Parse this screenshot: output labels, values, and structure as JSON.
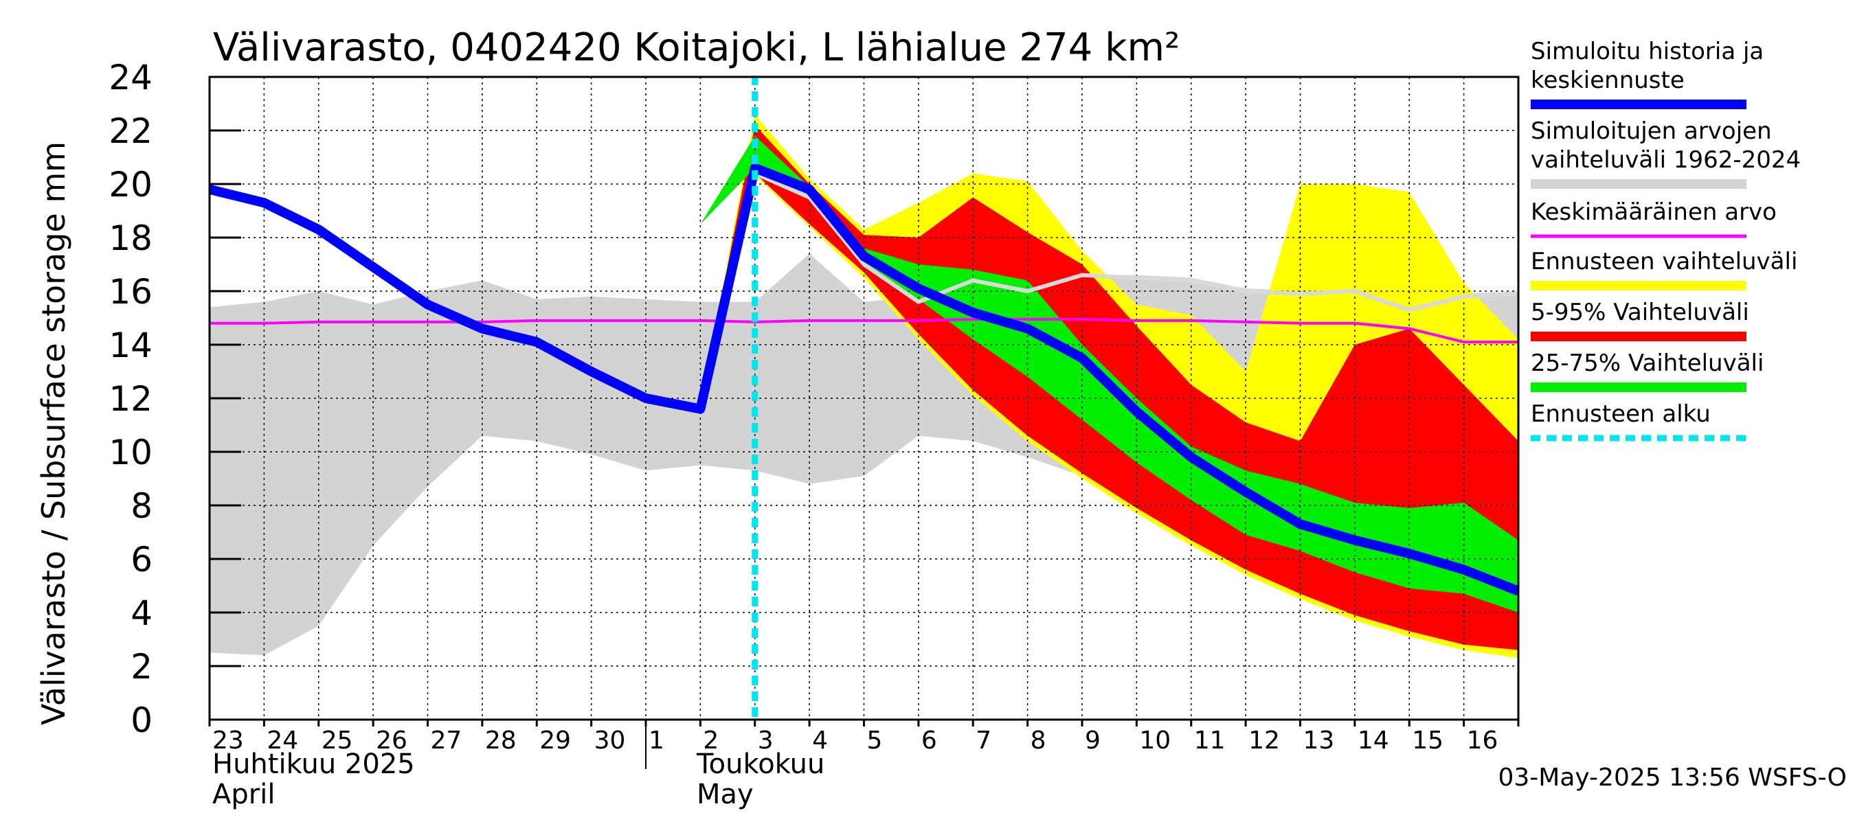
{
  "chart_data": {
    "type": "area",
    "title": "Välivarasto, 0402420 Koitajoki, L lähialue 274 km²",
    "ylabel": "Välivarasto / Subsurface storage  mm",
    "ylim": [
      0,
      24
    ],
    "yticks": [
      "0",
      "2",
      "4",
      "6",
      "8",
      "10",
      "12",
      "14",
      "16",
      "18",
      "20",
      "22",
      "24"
    ],
    "xlim": [
      0,
      24
    ],
    "day_labels": [
      "23",
      "24",
      "25",
      "26",
      "27",
      "28",
      "29",
      "30",
      "1",
      "2",
      "3",
      "4",
      "5",
      "6",
      "7",
      "8",
      "9",
      "10",
      "11",
      "12",
      "13",
      "14",
      "15",
      "16"
    ],
    "month_labels": [
      {
        "line1": "Huhtikuu  2025",
        "line2": "April",
        "start": 0
      },
      {
        "line1": "Toukokuu",
        "line2": "May",
        "start": 8
      }
    ],
    "month_boundary": 8,
    "forecast_start": 10,
    "grid": true,
    "legend_position": "right",
    "timestamp": "03-May-2025 13:56 WSFS-O",
    "series": [
      {
        "name": "Simuloitujen arvojen vaihteluväli 1962-2024",
        "role": "history_range",
        "color": "#d3d3d3",
        "legend_lines": [
          "Simuloitujen arvojen",
          "vaihteluväli 1962-2024"
        ],
        "x": [
          0,
          1,
          2,
          3,
          4,
          5,
          6,
          7,
          8,
          9,
          10,
          11,
          12,
          13,
          14,
          15,
          16,
          17,
          18,
          19,
          20,
          21,
          22,
          23,
          24
        ],
        "lower": [
          2.5,
          2.4,
          3.5,
          6.5,
          8.7,
          10.6,
          10.4,
          9.9,
          9.3,
          9.5,
          9.3,
          8.8,
          9.1,
          10.6,
          10.4,
          9.8,
          9.1,
          8.6,
          8.1,
          7.6,
          7.1,
          6.8,
          6.5,
          6.2,
          6.0
        ],
        "upper": [
          15.4,
          15.6,
          16.0,
          15.5,
          16.0,
          16.4,
          15.7,
          15.8,
          15.7,
          15.6,
          15.6,
          17.4,
          15.6,
          15.8,
          16.4,
          16.2,
          16.6,
          16.6,
          16.5,
          16.1,
          16.0,
          16.0,
          15.9,
          15.9,
          16.0
        ]
      },
      {
        "name": "Ennusteen vaihteluväli",
        "role": "forecast_range",
        "color": "#ffff00",
        "x": [
          8.0,
          9.0,
          10.0,
          11.0,
          12.0,
          13.0,
          14.0,
          15.0,
          16.0,
          17.0,
          18.0,
          19.0,
          20.0,
          21.0,
          22.0,
          23.0,
          24.0
        ],
        "lower": [
          12.0,
          11.7,
          20.3,
          18.4,
          16.5,
          14.2,
          12.1,
          10.4,
          9.0,
          7.7,
          6.5,
          5.4,
          4.5,
          3.7,
          3.1,
          2.6,
          2.3
        ],
        "upper": [
          12.0,
          11.7,
          22.6,
          20.2,
          18.3,
          19.3,
          20.4,
          20.1,
          17.5,
          15.5,
          15.1,
          13.0,
          20.0,
          20.0,
          19.7,
          16.3,
          14.2
        ]
      },
      {
        "name": "5-95% Vaihteluväli",
        "role": "p5_95",
        "color": "#ff0000",
        "x": [
          8.0,
          9.0,
          10.0,
          11.0,
          12.0,
          13.0,
          14.0,
          15.0,
          16.0,
          17.0,
          18.0,
          19.0,
          20.0,
          21.0,
          22.0,
          23.0,
          24.0
        ],
        "lower": [
          12.0,
          11.7,
          20.4,
          18.5,
          16.7,
          14.4,
          12.3,
          10.6,
          9.2,
          7.9,
          6.7,
          5.6,
          4.7,
          3.9,
          3.3,
          2.8,
          2.6
        ],
        "upper": [
          12.0,
          11.7,
          22.2,
          20.0,
          18.1,
          18.0,
          19.5,
          18.2,
          17.0,
          14.7,
          12.5,
          11.1,
          10.4,
          14.0,
          14.6,
          12.5,
          10.4
        ]
      },
      {
        "name": "25-75% Vaihteluväli",
        "role": "p25_75",
        "color": "#00ee00",
        "x": [
          8.0,
          9.0,
          10.0,
          11.0,
          12.0,
          13.0,
          14.0,
          15.0,
          16.0,
          17.0,
          18.0,
          19.0,
          20.0,
          21.0,
          22.0,
          23.0,
          24.0
        ],
        "lower": [
          12.0,
          18.5,
          20.6,
          19.5,
          16.9,
          15.7,
          14.2,
          12.8,
          11.2,
          9.6,
          8.2,
          6.9,
          6.3,
          5.5,
          4.9,
          4.7,
          4.0
        ],
        "upper": [
          12.0,
          18.5,
          21.8,
          19.9,
          17.6,
          17.0,
          16.8,
          16.4,
          14.0,
          12.0,
          10.2,
          9.3,
          8.8,
          8.1,
          7.9,
          8.1,
          6.7
        ]
      },
      {
        "name": "Keskimääräinen arvo",
        "role": "mean",
        "color": "#ff00ff",
        "x": [
          0,
          1,
          2,
          3,
          4,
          5,
          6,
          7,
          8,
          9,
          10,
          11,
          12,
          13,
          14,
          15,
          16,
          17,
          18,
          19,
          20,
          21,
          22,
          23,
          24
        ],
        "y": [
          14.8,
          14.8,
          14.85,
          14.85,
          14.85,
          14.85,
          14.9,
          14.9,
          14.9,
          14.9,
          14.85,
          14.9,
          14.9,
          14.9,
          14.95,
          14.95,
          14.95,
          14.9,
          14.9,
          14.85,
          14.8,
          14.8,
          14.6,
          14.1,
          14.1
        ]
      },
      {
        "name": "median",
        "role": "history_median",
        "color": "#d9d9d9",
        "x": [
          10,
          11,
          12,
          13,
          14,
          15,
          16,
          17,
          18,
          19,
          20,
          21,
          22,
          23,
          24
        ],
        "y": [
          20.4,
          19.5,
          17.0,
          15.6,
          16.4,
          16.0,
          16.6,
          16.5,
          16.4,
          16.0,
          15.9,
          16.0,
          15.3,
          15.8,
          15.9
        ]
      },
      {
        "name": "Simuloitu historia ja keskiennuste",
        "role": "simulated",
        "color": "#0000ff",
        "legend_lines": [
          "Simuloitu historia ja",
          "keskiennuste"
        ],
        "x": [
          0,
          1,
          2,
          3,
          4,
          5,
          6,
          7,
          8,
          9,
          10,
          11,
          12,
          13,
          14,
          15,
          16,
          17,
          18,
          19,
          20,
          21,
          22,
          23,
          24
        ],
        "y": [
          19.8,
          19.3,
          18.3,
          16.9,
          15.5,
          14.6,
          14.1,
          13.0,
          12.0,
          11.6,
          20.6,
          19.8,
          17.3,
          16.1,
          15.2,
          14.6,
          13.5,
          11.5,
          9.8,
          8.5,
          7.3,
          6.7,
          6.2,
          5.6,
          4.8
        ]
      }
    ],
    "legend": [
      {
        "lines": [
          "Simuloitu historia ja",
          "keskiennuste"
        ],
        "color": "#0000ff",
        "style": "solid"
      },
      {
        "lines": [
          "Simuloitujen arvojen",
          "vaihteluväli 1962-2024"
        ],
        "color": "#d3d3d3",
        "style": "solid"
      },
      {
        "lines": [
          "Keskimääräinen arvo"
        ],
        "color": "#ff00ff",
        "style": "thin"
      },
      {
        "lines": [
          "Ennusteen vaihteluväli"
        ],
        "color": "#ffff00",
        "style": "solid"
      },
      {
        "lines": [
          "5-95% Vaihteluväli"
        ],
        "color": "#ff0000",
        "style": "solid"
      },
      {
        "lines": [
          "25-75% Vaihteluväli"
        ],
        "color": "#00ee00",
        "style": "solid"
      },
      {
        "lines": [
          "Ennusteen alku"
        ],
        "color": "#00e5ee",
        "style": "dashed"
      }
    ]
  }
}
